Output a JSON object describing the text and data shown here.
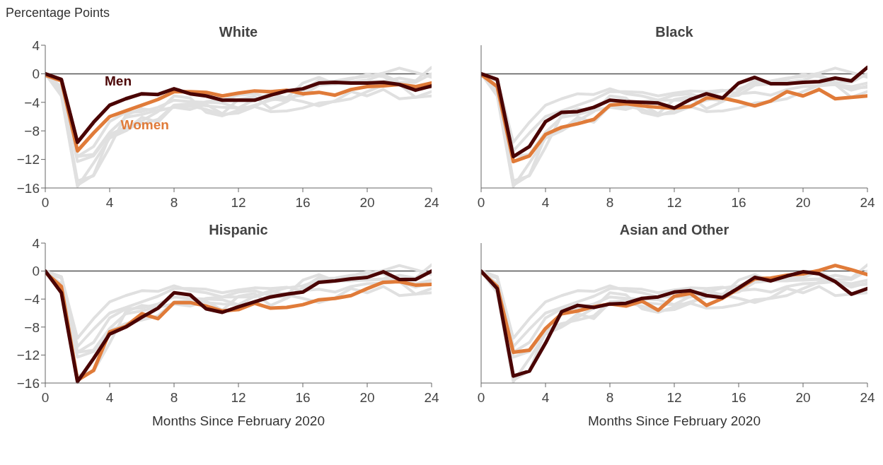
{
  "chart_data": [
    {
      "type": "line",
      "title": "White",
      "ylabel": "Percentage Points",
      "x": [
        0,
        1,
        2,
        3,
        4,
        5,
        6,
        7,
        8,
        9,
        10,
        11,
        12,
        13,
        14,
        15,
        16,
        17,
        18,
        19,
        20,
        21,
        22,
        23,
        24
      ],
      "xlim": [
        0,
        24
      ],
      "xticks": [
        0,
        4,
        8,
        12,
        16,
        20,
        24
      ],
      "ylim": [
        -16,
        4
      ],
      "yticks": [
        -16,
        -12,
        -8,
        -4,
        0,
        4
      ],
      "grid": false,
      "legend": false,
      "marker": "none",
      "line_style": "solid",
      "ref_lines": [
        {
          "axis": "y",
          "value": 0,
          "color": "#555555"
        }
      ],
      "series": [
        {
          "color": "#e0e0e0",
          "values": [
            0,
            -0.8,
            -11.6,
            -10.2,
            -6.7,
            -5.4,
            -5.3,
            -4.7,
            -3.7,
            -3.9,
            -4.0,
            -4.1,
            -4.8,
            -3.6,
            -2.8,
            -3.4,
            -1.3,
            -0.5,
            -1.4,
            -1.4,
            -1.2,
            -1.1,
            -0.6,
            -1.0,
            0.9
          ]
        },
        {
          "color": "#e0e0e0",
          "values": [
            -0.1,
            -1.8,
            -12.3,
            -11.5,
            -8.5,
            -7.5,
            -7.0,
            -6.4,
            -4.4,
            -4.2,
            -4.5,
            -4.7,
            -4.8,
            -4.6,
            -3.4,
            -3.4,
            -3.9,
            -4.5,
            -3.8,
            -2.5,
            -3.1,
            -2.2,
            -3.5,
            -3.3,
            -3.1
          ]
        },
        {
          "color": "#e0e0e0",
          "values": [
            0,
            -3.1,
            -15.8,
            -12.5,
            -9.0,
            -8.0,
            -6.6,
            -5.3,
            -3.1,
            -3.4,
            -5.4,
            -5.9,
            -5.1,
            -4.4,
            -3.7,
            -3.3,
            -3.0,
            -1.6,
            -1.4,
            -1.1,
            -0.9,
            -0.1,
            -1.2,
            -1.2,
            0
          ]
        },
        {
          "color": "#e0e0e0",
          "values": [
            -0.2,
            -2.2,
            -15.6,
            -14.2,
            -8.7,
            -7.9,
            -6.1,
            -6.8,
            -4.5,
            -4.5,
            -5.0,
            -5.7,
            -5.5,
            -4.6,
            -5.3,
            -5.2,
            -4.8,
            -4.1,
            -3.9,
            -3.5,
            -2.5,
            -1.6,
            -1.5,
            -2.0,
            -1.9
          ]
        },
        {
          "color": "#e0e0e0",
          "values": [
            0,
            -2.5,
            -15.0,
            -14.3,
            -10.3,
            -5.8,
            -4.9,
            -5.2,
            -4.7,
            -4.6,
            -3.9,
            -3.7,
            -3.0,
            -2.8,
            -3.5,
            -3.8,
            -2.4,
            -0.9,
            -1.4,
            -0.7,
            -0.1,
            -0.4,
            -1.5,
            -3.3,
            -2.5
          ]
        },
        {
          "color": "#e0e0e0",
          "values": [
            -0.1,
            -2.2,
            -11.6,
            -11.3,
            -8.2,
            -6.1,
            -5.7,
            -5.1,
            -4.7,
            -5.0,
            -4.3,
            -5.6,
            -3.6,
            -3.2,
            -4.9,
            -3.9,
            -2.5,
            -1.1,
            -1.0,
            -0.6,
            -0.4,
            0.1,
            0.8,
            0.2,
            -0.5
          ]
        },
        {
          "name": "Women",
          "color": "#e07b39",
          "values": [
            -0.2,
            -1.0,
            -10.8,
            -8.3,
            -6.0,
            -5.2,
            -4.4,
            -3.6,
            -2.5,
            -2.5,
            -2.6,
            -3.1,
            -2.7,
            -2.4,
            -2.5,
            -2.3,
            -2.8,
            -2.6,
            -3.0,
            -2.2,
            -1.8,
            -1.7,
            -1.5,
            -1.8,
            -1.3
          ]
        },
        {
          "name": "Men",
          "color": "#4a0404",
          "values": [
            0,
            -0.8,
            -9.6,
            -6.8,
            -4.4,
            -3.5,
            -2.8,
            -2.9,
            -2.1,
            -2.8,
            -3.1,
            -3.7,
            -3.7,
            -3.7,
            -3.0,
            -2.4,
            -2.1,
            -1.3,
            -1.2,
            -1.3,
            -1.3,
            -1.2,
            -1.5,
            -2.3,
            -1.7
          ]
        }
      ]
    },
    {
      "type": "line",
      "title": "Black",
      "tick_labels": "x",
      "x": [
        0,
        1,
        2,
        3,
        4,
        5,
        6,
        7,
        8,
        9,
        10,
        11,
        12,
        13,
        14,
        15,
        16,
        17,
        18,
        19,
        20,
        21,
        22,
        23,
        24
      ],
      "xlim": [
        0,
        24
      ],
      "xticks": [
        0,
        4,
        8,
        12,
        16,
        20,
        24
      ],
      "ylim": [
        -16,
        4
      ],
      "yticks": [
        -16,
        -12,
        -8,
        -4,
        0,
        4
      ],
      "grid": false,
      "legend": false,
      "marker": "none",
      "line_style": "solid",
      "ref_lines": [
        {
          "axis": "y",
          "value": 0,
          "color": "#555555"
        }
      ],
      "series": [
        {
          "color": "#e0e0e0",
          "values": [
            0,
            -0.8,
            -9.6,
            -6.8,
            -4.4,
            -3.5,
            -2.8,
            -2.9,
            -2.1,
            -2.8,
            -3.1,
            -3.7,
            -3.7,
            -3.7,
            -3.0,
            -2.4,
            -2.1,
            -1.3,
            -1.2,
            -1.3,
            -1.3,
            -1.2,
            -1.5,
            -2.3,
            -1.7
          ]
        },
        {
          "color": "#e0e0e0",
          "values": [
            -0.2,
            -1.0,
            -10.8,
            -8.3,
            -6.0,
            -5.2,
            -4.4,
            -3.6,
            -2.5,
            -2.5,
            -2.6,
            -3.1,
            -2.7,
            -2.4,
            -2.5,
            -2.3,
            -2.8,
            -2.6,
            -3.0,
            -2.2,
            -1.8,
            -1.7,
            -1.5,
            -1.8,
            -1.3
          ]
        },
        {
          "color": "#e0e0e0",
          "values": [
            0,
            -3.1,
            -15.8,
            -12.5,
            -9.0,
            -8.0,
            -6.6,
            -5.3,
            -3.1,
            -3.4,
            -5.4,
            -5.9,
            -5.1,
            -4.4,
            -3.7,
            -3.3,
            -3.0,
            -1.6,
            -1.4,
            -1.1,
            -0.9,
            -0.1,
            -1.2,
            -1.2,
            0
          ]
        },
        {
          "color": "#e0e0e0",
          "values": [
            -0.2,
            -2.2,
            -15.6,
            -14.2,
            -8.7,
            -7.9,
            -6.1,
            -6.8,
            -4.5,
            -4.5,
            -5.0,
            -5.7,
            -5.5,
            -4.6,
            -5.3,
            -5.2,
            -4.8,
            -4.1,
            -3.9,
            -3.5,
            -2.5,
            -1.6,
            -1.5,
            -2.0,
            -1.9
          ]
        },
        {
          "color": "#e0e0e0",
          "values": [
            0,
            -2.5,
            -15.0,
            -14.3,
            -10.3,
            -5.8,
            -4.9,
            -5.2,
            -4.7,
            -4.6,
            -3.9,
            -3.7,
            -3.0,
            -2.8,
            -3.5,
            -3.8,
            -2.4,
            -0.9,
            -1.4,
            -0.7,
            -0.1,
            -0.4,
            -1.5,
            -3.3,
            -2.5
          ]
        },
        {
          "color": "#e0e0e0",
          "values": [
            -0.1,
            -2.2,
            -11.6,
            -11.3,
            -8.2,
            -6.1,
            -5.7,
            -5.1,
            -4.7,
            -5.0,
            -4.3,
            -5.6,
            -3.6,
            -3.2,
            -4.9,
            -3.9,
            -2.5,
            -1.1,
            -1.0,
            -0.6,
            -0.4,
            0.1,
            0.8,
            0.2,
            -0.5
          ]
        },
        {
          "color": "#e07b39",
          "values": [
            -0.1,
            -1.8,
            -12.3,
            -11.5,
            -8.5,
            -7.5,
            -7.0,
            -6.4,
            -4.4,
            -4.2,
            -4.5,
            -4.7,
            -4.8,
            -4.6,
            -3.4,
            -3.4,
            -3.9,
            -4.5,
            -3.8,
            -2.5,
            -3.1,
            -2.2,
            -3.5,
            -3.3,
            -3.1
          ]
        },
        {
          "color": "#4a0404",
          "values": [
            0,
            -0.8,
            -11.6,
            -10.2,
            -6.7,
            -5.4,
            -5.3,
            -4.7,
            -3.7,
            -3.9,
            -4.0,
            -4.1,
            -4.8,
            -3.6,
            -2.8,
            -3.4,
            -1.3,
            -0.5,
            -1.4,
            -1.4,
            -1.2,
            -1.1,
            -0.6,
            -1.0,
            0.9
          ]
        }
      ]
    },
    {
      "type": "line",
      "title": "Hispanic",
      "xlabel": "Months Since February 2020",
      "x": [
        0,
        1,
        2,
        3,
        4,
        5,
        6,
        7,
        8,
        9,
        10,
        11,
        12,
        13,
        14,
        15,
        16,
        17,
        18,
        19,
        20,
        21,
        22,
        23,
        24
      ],
      "xlim": [
        0,
        24
      ],
      "xticks": [
        0,
        4,
        8,
        12,
        16,
        20,
        24
      ],
      "ylim": [
        -16,
        4
      ],
      "yticks": [
        -16,
        -12,
        -8,
        -4,
        0,
        4
      ],
      "grid": false,
      "legend": false,
      "marker": "none",
      "line_style": "solid",
      "ref_lines": [
        {
          "axis": "y",
          "value": 0,
          "color": "#555555"
        }
      ],
      "series": [
        {
          "color": "#e0e0e0",
          "values": [
            0,
            -0.8,
            -9.6,
            -6.8,
            -4.4,
            -3.5,
            -2.8,
            -2.9,
            -2.1,
            -2.8,
            -3.1,
            -3.7,
            -3.7,
            -3.7,
            -3.0,
            -2.4,
            -2.1,
            -1.3,
            -1.2,
            -1.3,
            -1.3,
            -1.2,
            -1.5,
            -2.3,
            -1.7
          ]
        },
        {
          "color": "#e0e0e0",
          "values": [
            -0.2,
            -1.0,
            -10.8,
            -8.3,
            -6.0,
            -5.2,
            -4.4,
            -3.6,
            -2.5,
            -2.5,
            -2.6,
            -3.1,
            -2.7,
            -2.4,
            -2.5,
            -2.3,
            -2.8,
            -2.6,
            -3.0,
            -2.2,
            -1.8,
            -1.7,
            -1.5,
            -1.8,
            -1.3
          ]
        },
        {
          "color": "#e0e0e0",
          "values": [
            0,
            -0.8,
            -11.6,
            -10.2,
            -6.7,
            -5.4,
            -5.3,
            -4.7,
            -3.7,
            -3.9,
            -4.0,
            -4.1,
            -4.8,
            -3.6,
            -2.8,
            -3.4,
            -1.3,
            -0.5,
            -1.4,
            -1.4,
            -1.2,
            -1.1,
            -0.6,
            -1.0,
            0.9
          ]
        },
        {
          "color": "#e0e0e0",
          "values": [
            -0.1,
            -1.8,
            -12.3,
            -11.5,
            -8.5,
            -7.5,
            -7.0,
            -6.4,
            -4.4,
            -4.2,
            -4.5,
            -4.7,
            -4.8,
            -4.6,
            -3.4,
            -3.4,
            -3.9,
            -4.5,
            -3.8,
            -2.5,
            -3.1,
            -2.2,
            -3.5,
            -3.3,
            -3.1
          ]
        },
        {
          "color": "#e0e0e0",
          "values": [
            0,
            -2.5,
            -15.0,
            -14.3,
            -10.3,
            -5.8,
            -4.9,
            -5.2,
            -4.7,
            -4.6,
            -3.9,
            -3.7,
            -3.0,
            -2.8,
            -3.5,
            -3.8,
            -2.4,
            -0.9,
            -1.4,
            -0.7,
            -0.1,
            -0.4,
            -1.5,
            -3.3,
            -2.5
          ]
        },
        {
          "color": "#e0e0e0",
          "values": [
            -0.1,
            -2.2,
            -11.6,
            -11.3,
            -8.2,
            -6.1,
            -5.7,
            -5.1,
            -4.7,
            -5.0,
            -4.3,
            -5.6,
            -3.6,
            -3.2,
            -4.9,
            -3.9,
            -2.5,
            -1.1,
            -1.0,
            -0.6,
            -0.4,
            0.1,
            0.8,
            0.2,
            -0.5
          ]
        },
        {
          "color": "#e07b39",
          "values": [
            -0.2,
            -2.2,
            -15.6,
            -14.2,
            -8.7,
            -7.9,
            -6.1,
            -6.8,
            -4.5,
            -4.5,
            -5.0,
            -5.7,
            -5.5,
            -4.6,
            -5.3,
            -5.2,
            -4.8,
            -4.1,
            -3.9,
            -3.5,
            -2.5,
            -1.6,
            -1.5,
            -2.0,
            -1.9
          ]
        },
        {
          "color": "#4a0404",
          "values": [
            0,
            -3.1,
            -15.8,
            -12.5,
            -9.0,
            -8.0,
            -6.6,
            -5.3,
            -3.1,
            -3.4,
            -5.4,
            -5.9,
            -5.1,
            -4.4,
            -3.7,
            -3.3,
            -3.0,
            -1.6,
            -1.4,
            -1.1,
            -0.9,
            -0.1,
            -1.2,
            -1.2,
            0
          ]
        }
      ]
    },
    {
      "type": "line",
      "title": "Asian and Other",
      "xlabel": "Months Since February 2020",
      "tick_labels": "x",
      "x": [
        0,
        1,
        2,
        3,
        4,
        5,
        6,
        7,
        8,
        9,
        10,
        11,
        12,
        13,
        14,
        15,
        16,
        17,
        18,
        19,
        20,
        21,
        22,
        23,
        24
      ],
      "xlim": [
        0,
        24
      ],
      "xticks": [
        0,
        4,
        8,
        12,
        16,
        20,
        24
      ],
      "ylim": [
        -16,
        4
      ],
      "yticks": [
        -16,
        -12,
        -8,
        -4,
        0,
        4
      ],
      "grid": false,
      "legend": false,
      "marker": "none",
      "line_style": "solid",
      "ref_lines": [
        {
          "axis": "y",
          "value": 0,
          "color": "#555555"
        }
      ],
      "series": [
        {
          "color": "#e0e0e0",
          "values": [
            0,
            -0.8,
            -9.6,
            -6.8,
            -4.4,
            -3.5,
            -2.8,
            -2.9,
            -2.1,
            -2.8,
            -3.1,
            -3.7,
            -3.7,
            -3.7,
            -3.0,
            -2.4,
            -2.1,
            -1.3,
            -1.2,
            -1.3,
            -1.3,
            -1.2,
            -1.5,
            -2.3,
            -1.7
          ]
        },
        {
          "color": "#e0e0e0",
          "values": [
            -0.2,
            -1.0,
            -10.8,
            -8.3,
            -6.0,
            -5.2,
            -4.4,
            -3.6,
            -2.5,
            -2.5,
            -2.6,
            -3.1,
            -2.7,
            -2.4,
            -2.5,
            -2.3,
            -2.8,
            -2.6,
            -3.0,
            -2.2,
            -1.8,
            -1.7,
            -1.5,
            -1.8,
            -1.3
          ]
        },
        {
          "color": "#e0e0e0",
          "values": [
            0,
            -0.8,
            -11.6,
            -10.2,
            -6.7,
            -5.4,
            -5.3,
            -4.7,
            -3.7,
            -3.9,
            -4.0,
            -4.1,
            -4.8,
            -3.6,
            -2.8,
            -3.4,
            -1.3,
            -0.5,
            -1.4,
            -1.4,
            -1.2,
            -1.1,
            -0.6,
            -1.0,
            0.9
          ]
        },
        {
          "color": "#e0e0e0",
          "values": [
            -0.1,
            -1.8,
            -12.3,
            -11.5,
            -8.5,
            -7.5,
            -7.0,
            -6.4,
            -4.4,
            -4.2,
            -4.5,
            -4.7,
            -4.8,
            -4.6,
            -3.4,
            -3.4,
            -3.9,
            -4.5,
            -3.8,
            -2.5,
            -3.1,
            -2.2,
            -3.5,
            -3.3,
            -3.1
          ]
        },
        {
          "color": "#e0e0e0",
          "values": [
            0,
            -3.1,
            -15.8,
            -12.5,
            -9.0,
            -8.0,
            -6.6,
            -5.3,
            -3.1,
            -3.4,
            -5.4,
            -5.9,
            -5.1,
            -4.4,
            -3.7,
            -3.3,
            -3.0,
            -1.6,
            -1.4,
            -1.1,
            -0.9,
            -0.1,
            -1.2,
            -1.2,
            0
          ]
        },
        {
          "color": "#e0e0e0",
          "values": [
            -0.2,
            -2.2,
            -15.6,
            -14.2,
            -8.7,
            -7.9,
            -6.1,
            -6.8,
            -4.5,
            -4.5,
            -5.0,
            -5.7,
            -5.5,
            -4.6,
            -5.3,
            -5.2,
            -4.8,
            -4.1,
            -3.9,
            -3.5,
            -2.5,
            -1.6,
            -1.5,
            -2.0,
            -1.9
          ]
        },
        {
          "color": "#e07b39",
          "values": [
            -0.1,
            -2.2,
            -11.6,
            -11.3,
            -8.2,
            -6.1,
            -5.7,
            -5.1,
            -4.7,
            -5.0,
            -4.3,
            -5.6,
            -3.6,
            -3.2,
            -4.9,
            -3.9,
            -2.5,
            -1.1,
            -1.0,
            -0.6,
            -0.4,
            0.1,
            0.8,
            0.2,
            -0.5
          ]
        },
        {
          "color": "#4a0404",
          "values": [
            0,
            -2.5,
            -15.0,
            -14.3,
            -10.3,
            -5.8,
            -4.9,
            -5.2,
            -4.7,
            -4.6,
            -3.9,
            -3.7,
            -3.0,
            -2.8,
            -3.5,
            -3.8,
            -2.4,
            -0.9,
            -1.4,
            -0.7,
            -0.1,
            -0.4,
            -1.5,
            -3.3,
            -2.5
          ]
        }
      ]
    }
  ]
}
